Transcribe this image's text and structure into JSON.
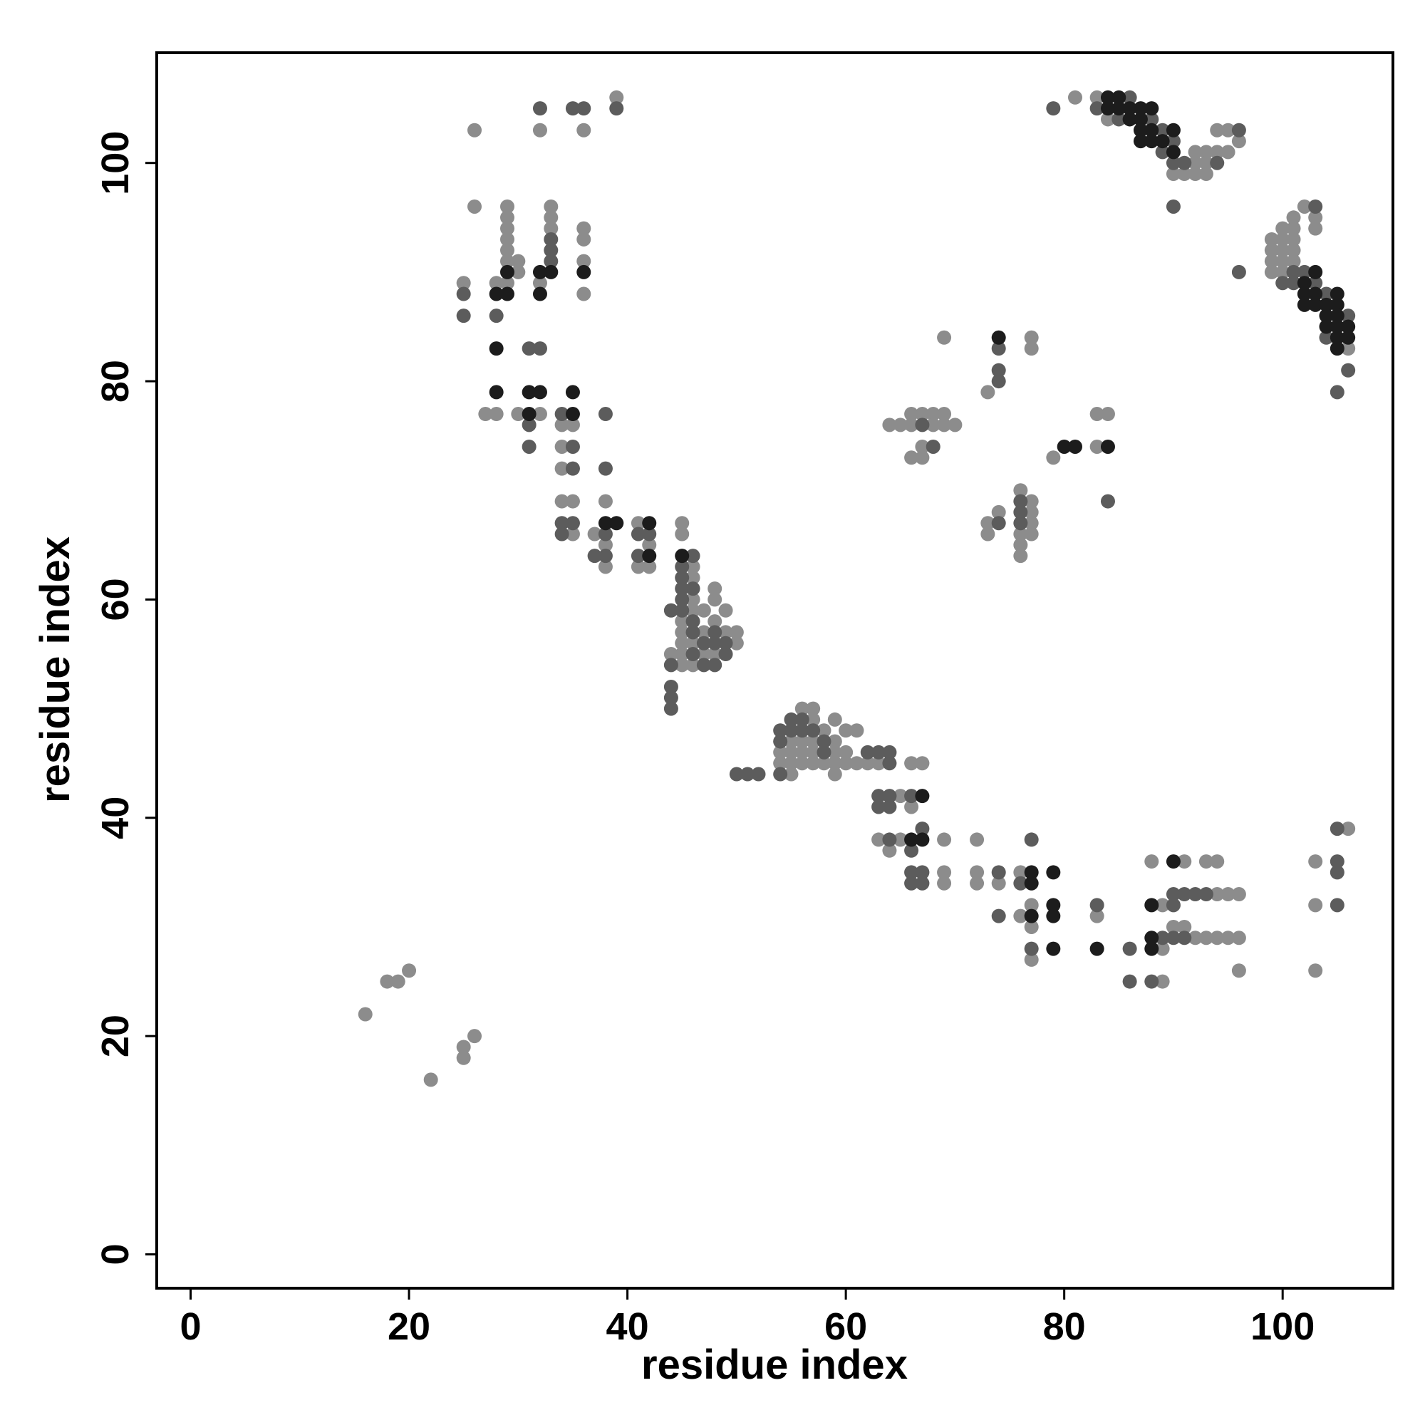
{
  "chart_data": {
    "type": "scatter",
    "xlabel": "residue index",
    "ylabel": "residue index",
    "xlim": [
      -3.1,
      110.1
    ],
    "ylim": [
      -3.1,
      110.1
    ],
    "xticks": [
      0,
      20,
      40,
      60,
      80,
      100
    ],
    "yticks": [
      0,
      20,
      40,
      60,
      80,
      100
    ],
    "series": [
      {
        "color": "#8c8c8c",
        "x": [
          26,
          32,
          36,
          39,
          26,
          25,
          28,
          28,
          29,
          29,
          29,
          29,
          29,
          29,
          29,
          30,
          30,
          32,
          33,
          33,
          33,
          36,
          36,
          36,
          36,
          27,
          30,
          32,
          34,
          35,
          34,
          34,
          34,
          35,
          38,
          37,
          35,
          38,
          38,
          41,
          42,
          41,
          42,
          45,
          45,
          45,
          45,
          45,
          45,
          45,
          46,
          46,
          46,
          46,
          46,
          46,
          44,
          47,
          47,
          47,
          48,
          48,
          48,
          48,
          49,
          49,
          50,
          50,
          55,
          54,
          54,
          55,
          55,
          55,
          56,
          56,
          56,
          56,
          57,
          57,
          57,
          57,
          57,
          58,
          58,
          59,
          59,
          59,
          59,
          59,
          60,
          60,
          60,
          61,
          61,
          62,
          63,
          63,
          64,
          65,
          65,
          66,
          66,
          67,
          69,
          69,
          69,
          72,
          72,
          72,
          74,
          76,
          76,
          77,
          77,
          77,
          83,
          88,
          89,
          89,
          89,
          90,
          91,
          91,
          92,
          93,
          93,
          94,
          94,
          94,
          95,
          95,
          96,
          96,
          96,
          103,
          103,
          103,
          106,
          16,
          18,
          19,
          20,
          22,
          25,
          25,
          26,
          64,
          65,
          66,
          66,
          67,
          68,
          68,
          69,
          69,
          70,
          66,
          67,
          67,
          69,
          73,
          77,
          77,
          73,
          73,
          74,
          76,
          76,
          76,
          76,
          77,
          77,
          77,
          77,
          79,
          83,
          84,
          83,
          81,
          83,
          84,
          90,
          91,
          92,
          92,
          92,
          93,
          93,
          93,
          94,
          94,
          95,
          95,
          96,
          99,
          99,
          99,
          99,
          100,
          100,
          100,
          100,
          100,
          101,
          101,
          101,
          101,
          101,
          102,
          103,
          103,
          106
        ],
        "values": [
          103,
          103,
          103,
          106,
          96,
          89,
          89,
          77,
          96,
          95,
          94,
          93,
          92,
          91,
          89,
          91,
          90,
          89,
          96,
          95,
          94,
          94,
          93,
          91,
          88,
          77,
          77,
          77,
          76,
          76,
          74,
          72,
          69,
          69,
          69,
          66,
          66,
          65,
          63,
          67,
          65,
          63,
          63,
          67,
          66,
          58,
          57,
          56,
          55,
          54,
          63,
          62,
          60,
          59,
          56,
          54,
          55,
          59,
          57,
          55,
          61,
          60,
          58,
          55,
          59,
          57,
          57,
          56,
          44,
          46,
          45,
          47,
          46,
          45,
          50,
          47,
          46,
          45,
          50,
          49,
          47,
          46,
          45,
          48,
          45,
          49,
          47,
          46,
          45,
          44,
          48,
          46,
          45,
          48,
          45,
          45,
          45,
          38,
          37,
          42,
          38,
          45,
          41,
          45,
          38,
          35,
          34,
          38,
          35,
          34,
          34,
          35,
          31,
          32,
          30,
          27,
          31,
          36,
          32,
          28,
          25,
          30,
          36,
          30,
          29,
          36,
          29,
          36,
          33,
          29,
          33,
          29,
          33,
          29,
          26,
          36,
          32,
          26,
          39,
          22,
          25,
          25,
          26,
          16,
          19,
          18,
          20,
          76,
          76,
          76,
          77,
          77,
          77,
          76,
          77,
          76,
          76,
          73,
          73,
          74,
          84,
          79,
          84,
          83,
          67,
          66,
          68,
          70,
          66,
          65,
          64,
          69,
          68,
          67,
          66,
          73,
          77,
          77,
          74,
          106,
          106,
          104,
          99,
          99,
          101,
          100,
          99,
          101,
          100,
          99,
          103,
          101,
          103,
          101,
          102,
          93,
          92,
          91,
          90,
          94,
          93,
          92,
          91,
          90,
          95,
          94,
          93,
          92,
          91,
          96,
          95,
          94,
          83
        ]
      },
      {
        "color": "#5c5c5c",
        "x": [
          32,
          35,
          36,
          39,
          25,
          25,
          28,
          33,
          33,
          33,
          31,
          32,
          34,
          38,
          31,
          31,
          35,
          35,
          38,
          34,
          35,
          38,
          34,
          37,
          38,
          41,
          42,
          41,
          45,
          45,
          45,
          45,
          45,
          46,
          46,
          46,
          46,
          46,
          44,
          44,
          44,
          44,
          44,
          47,
          47,
          48,
          48,
          48,
          49,
          49,
          50,
          51,
          52,
          54,
          54,
          54,
          55,
          55,
          56,
          56,
          57,
          58,
          58,
          62,
          63,
          64,
          64,
          63,
          63,
          64,
          64,
          64,
          66,
          66,
          66,
          66,
          67,
          67,
          67,
          74,
          74,
          76,
          77,
          77,
          83,
          86,
          86,
          88,
          89,
          90,
          90,
          90,
          91,
          91,
          92,
          93,
          105,
          105,
          105,
          105,
          67,
          68,
          74,
          74,
          74,
          74,
          76,
          76,
          76,
          84,
          79,
          83,
          85,
          86,
          88,
          89,
          89,
          90,
          90,
          91,
          94,
          96,
          90,
          96,
          100,
          101,
          101,
          102,
          103,
          103,
          104,
          104,
          105,
          106,
          106
        ],
        "values": [
          105,
          105,
          105,
          105,
          88,
          86,
          86,
          93,
          92,
          91,
          83,
          83,
          77,
          77,
          76,
          74,
          74,
          72,
          72,
          67,
          67,
          66,
          66,
          64,
          64,
          66,
          66,
          64,
          63,
          62,
          61,
          60,
          59,
          64,
          61,
          58,
          57,
          55,
          59,
          54,
          52,
          51,
          50,
          56,
          54,
          57,
          56,
          54,
          56,
          55,
          44,
          44,
          44,
          44,
          48,
          47,
          49,
          48,
          49,
          48,
          48,
          47,
          46,
          46,
          46,
          46,
          45,
          42,
          41,
          42,
          41,
          38,
          42,
          37,
          35,
          34,
          39,
          35,
          34,
          35,
          31,
          34,
          38,
          28,
          32,
          28,
          25,
          25,
          29,
          33,
          32,
          29,
          33,
          29,
          33,
          33,
          39,
          36,
          35,
          32,
          76,
          74,
          83,
          81,
          80,
          67,
          69,
          68,
          67,
          69,
          105,
          105,
          104,
          106,
          104,
          103,
          101,
          102,
          100,
          100,
          100,
          103,
          96,
          90,
          89,
          90,
          89,
          90,
          96,
          89,
          88,
          84,
          79,
          86,
          81
        ]
      },
      {
        "color": "#1c1c1c",
        "x": [
          28,
          28,
          28,
          29,
          29,
          32,
          32,
          33,
          36,
          31,
          32,
          35,
          31,
          35,
          38,
          39,
          42,
          42,
          45,
          66,
          67,
          67,
          77,
          77,
          77,
          79,
          79,
          79,
          79,
          83,
          88,
          88,
          88,
          90,
          74,
          80,
          81,
          84,
          84,
          84,
          85,
          85,
          86,
          86,
          87,
          87,
          87,
          87,
          88,
          88,
          88,
          89,
          90,
          90,
          102,
          102,
          102,
          103,
          103,
          103,
          104,
          104,
          104,
          105,
          105,
          105,
          105,
          105,
          105,
          106,
          106
        ],
        "values": [
          88,
          83,
          79,
          90,
          88,
          90,
          88,
          90,
          90,
          79,
          79,
          79,
          77,
          77,
          67,
          67,
          67,
          64,
          64,
          38,
          42,
          38,
          35,
          34,
          31,
          35,
          32,
          31,
          28,
          28,
          32,
          29,
          28,
          36,
          84,
          74,
          74,
          74,
          106,
          105,
          106,
          105,
          105,
          104,
          105,
          104,
          103,
          102,
          105,
          103,
          102,
          102,
          103,
          101,
          89,
          88,
          87,
          90,
          88,
          87,
          87,
          86,
          85,
          88,
          87,
          86,
          85,
          84,
          83,
          85,
          84
        ]
      }
    ]
  }
}
